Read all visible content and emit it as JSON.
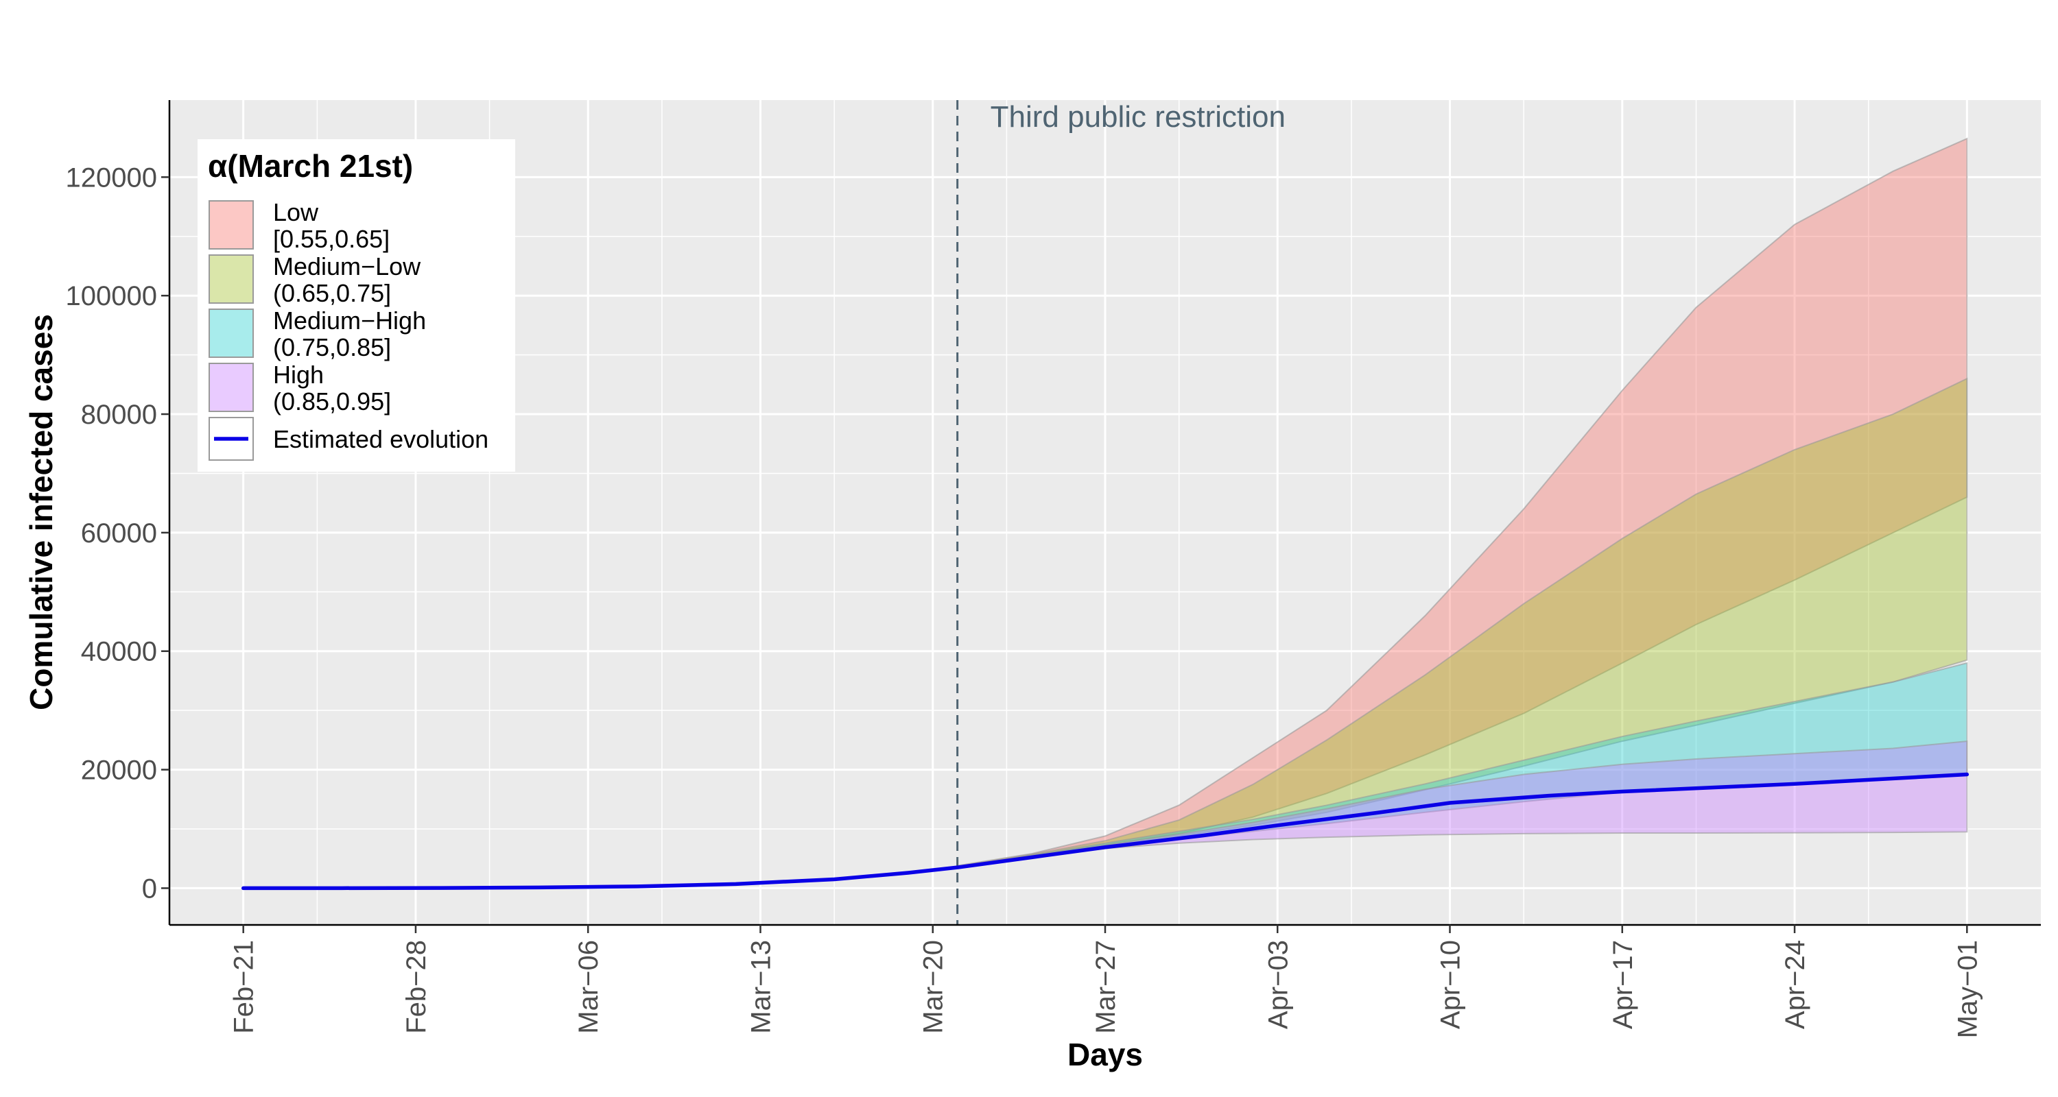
{
  "chart_data": {
    "type": "area",
    "xlabel": "Days",
    "ylabel": "Comulative infected cases",
    "x_ticks": [
      "Feb−21",
      "Feb−28",
      "Mar−06",
      "Mar−13",
      "Mar−20",
      "Mar−27",
      "Apr−03",
      "Apr−10",
      "Apr−17",
      "Apr−24",
      "May−01"
    ],
    "y_ticks": [
      "0",
      "20000",
      "40000",
      "60000",
      "80000",
      "100000",
      "120000"
    ],
    "xlim": [
      "2020-02-18",
      "2020-05-04"
    ],
    "ylim": [
      -6200,
      133000
    ],
    "grid": true,
    "legend_position": "top-left",
    "legend": {
      "title": "α(March 21st)",
      "items": [
        {
          "line1": "Low",
          "line2": " [0.55,0.65]"
        },
        {
          "line1": "Medium−Low",
          "line2": " (0.65,0.75]"
        },
        {
          "line1": "Medium−High",
          "line2": " (0.75,0.85]"
        },
        {
          "line1": "High",
          "line2": " (0.85,0.95]"
        }
      ],
      "line_label": "Estimated evolution"
    },
    "annotation": {
      "text": "Third public restriction",
      "date": "2020-03-21"
    },
    "colors": {
      "low": "#F8766D",
      "medium_low": "#A3C02A",
      "medium_high": "#26CFCF",
      "high": "#C77CFF",
      "line": "#0A00E6",
      "annotation": "#4F6472",
      "panel": "#EBEBEB"
    },
    "bands": [
      {
        "name": "Low",
        "color": "#F8766D",
        "x": [
          "2020-03-21",
          "2020-03-24",
          "2020-03-27",
          "2020-03-30",
          "2020-04-02",
          "2020-04-05",
          "2020-04-09",
          "2020-04-13",
          "2020-04-17",
          "2020-04-20",
          "2020-04-24",
          "2020-04-28",
          "2020-05-01"
        ],
        "upper": [
          3800,
          5800,
          8800,
          14000,
          22000,
          30000,
          46000,
          64000,
          84000,
          98000,
          112000,
          121000,
          126500
        ],
        "lower": [
          3500,
          5500,
          7300,
          9200,
          12000,
          16000,
          22500,
          29500,
          38000,
          44500,
          52000,
          60000,
          66000
        ]
      },
      {
        "name": "Medium−Low",
        "color": "#A3C02A",
        "x": [
          "2020-03-21",
          "2020-03-24",
          "2020-03-27",
          "2020-03-30",
          "2020-04-02",
          "2020-04-05",
          "2020-04-09",
          "2020-04-13",
          "2020-04-17",
          "2020-04-20",
          "2020-04-24",
          "2020-04-28",
          "2020-05-01"
        ],
        "upper": [
          3700,
          5700,
          8000,
          11500,
          17500,
          25000,
          36000,
          48000,
          59000,
          66500,
          74000,
          80000,
          86000
        ],
        "lower": [
          3500,
          5400,
          7000,
          8800,
          10600,
          12800,
          16600,
          20600,
          24800,
          27500,
          31200,
          34800,
          38500
        ]
      },
      {
        "name": "Medium−High",
        "color": "#26CFCF",
        "x": [
          "2020-03-21",
          "2020-03-24",
          "2020-03-27",
          "2020-03-30",
          "2020-04-02",
          "2020-04-05",
          "2020-04-09",
          "2020-04-13",
          "2020-04-17",
          "2020-04-20",
          "2020-04-24",
          "2020-04-28",
          "2020-05-01"
        ],
        "upper": [
          3600,
          5600,
          7600,
          9600,
          11600,
          14000,
          17600,
          21600,
          25600,
          28200,
          31500,
          34800,
          38000
        ],
        "lower": [
          3500,
          5300,
          6900,
          8300,
          9600,
          10900,
          12800,
          14600,
          16200,
          16900,
          17600,
          18400,
          19200
        ]
      },
      {
        "name": "High",
        "color": "#C77CFF",
        "x": [
          "2020-03-21",
          "2020-03-24",
          "2020-03-27",
          "2020-03-30",
          "2020-04-02",
          "2020-04-05",
          "2020-04-09",
          "2020-04-13",
          "2020-04-17",
          "2020-04-20",
          "2020-04-24",
          "2020-04-28",
          "2020-05-01"
        ],
        "upper": [
          3600,
          5500,
          7300,
          9100,
          11100,
          13400,
          16700,
          19200,
          20900,
          21800,
          22700,
          23600,
          24800
        ],
        "lower": [
          3400,
          5200,
          6700,
          7600,
          8200,
          8600,
          9000,
          9200,
          9300,
          9300,
          9350,
          9400,
          9500
        ]
      }
    ],
    "line": {
      "name": "Estimated evolution",
      "x": [
        "2020-02-21",
        "2020-02-25",
        "2020-02-29",
        "2020-03-04",
        "2020-03-08",
        "2020-03-12",
        "2020-03-16",
        "2020-03-19",
        "2020-03-21",
        "2020-03-24",
        "2020-03-27",
        "2020-03-31",
        "2020-04-03",
        "2020-04-07",
        "2020-04-10",
        "2020-04-14",
        "2020-04-17",
        "2020-04-24",
        "2020-05-01"
      ],
      "y": [
        0,
        10,
        40,
        120,
        300,
        700,
        1500,
        2600,
        3500,
        5200,
        6900,
        8900,
        10600,
        12700,
        14400,
        15600,
        16300,
        17600,
        19200
      ]
    }
  }
}
